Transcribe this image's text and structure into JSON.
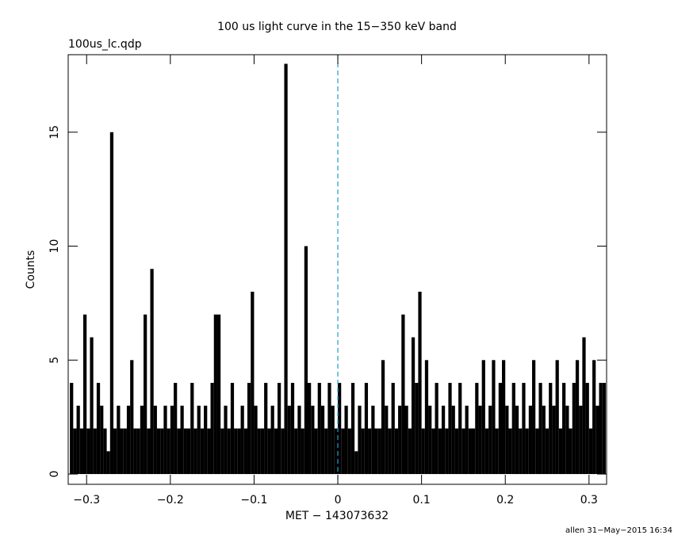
{
  "chart_data": {
    "type": "histogram-line",
    "title": "100 us light curve in the 15−350 keV band",
    "subtitle": "100us_lc.qdp",
    "xlabel": "MET − 143073632",
    "ylabel": "Counts",
    "footer": "allen 31−May−2015 16:34",
    "color": "#000000",
    "marker_x": 0,
    "marker_color": "#1f9ec9",
    "xlim": [
      -0.322,
      0.321
    ],
    "ylim": [
      -0.45,
      18.4
    ],
    "xticks": [
      {
        "value": -0.3,
        "label": "−0.3"
      },
      {
        "value": -0.2,
        "label": "−0.2"
      },
      {
        "value": -0.1,
        "label": "−0.1"
      },
      0,
      0.1,
      0.2,
      0.3
    ],
    "yticks": [
      0,
      5,
      10,
      15
    ],
    "x": [
      -0.32,
      -0.316,
      -0.312,
      -0.308,
      -0.304,
      -0.3,
      -0.296,
      -0.292,
      -0.288,
      -0.284,
      -0.28,
      -0.276,
      -0.272,
      -0.268,
      -0.264,
      -0.26,
      -0.256,
      -0.252,
      -0.248,
      -0.244,
      -0.24,
      -0.236,
      -0.232,
      -0.228,
      -0.224,
      -0.22,
      -0.216,
      -0.212,
      -0.208,
      -0.204,
      -0.2,
      -0.196,
      -0.192,
      -0.188,
      -0.184,
      -0.18,
      -0.176,
      -0.172,
      -0.168,
      -0.164,
      -0.16,
      -0.156,
      -0.152,
      -0.148,
      -0.144,
      -0.14,
      -0.136,
      -0.132,
      -0.128,
      -0.124,
      -0.12,
      -0.116,
      -0.112,
      -0.108,
      -0.104,
      -0.1,
      -0.096,
      -0.092,
      -0.088,
      -0.084,
      -0.08,
      -0.076,
      -0.072,
      -0.068,
      -0.064,
      -0.06,
      -0.056,
      -0.052,
      -0.048,
      -0.044,
      -0.04,
      -0.036,
      -0.032,
      -0.028,
      -0.024,
      -0.02,
      -0.016,
      -0.012,
      -0.008,
      -0.004,
      0,
      0.004,
      0.008,
      0.012,
      0.016,
      0.02,
      0.024,
      0.028,
      0.032,
      0.036,
      0.04,
      0.044,
      0.048,
      0.052,
      0.056,
      0.06,
      0.064,
      0.068,
      0.072,
      0.076,
      0.08,
      0.084,
      0.088,
      0.092,
      0.096,
      0.1,
      0.104,
      0.108,
      0.112,
      0.116,
      0.12,
      0.124,
      0.128,
      0.132,
      0.136,
      0.14,
      0.144,
      0.148,
      0.152,
      0.156,
      0.16,
      0.164,
      0.168,
      0.172,
      0.176,
      0.18,
      0.184,
      0.188,
      0.192,
      0.196,
      0.2,
      0.204,
      0.208,
      0.212,
      0.216,
      0.22,
      0.224,
      0.228,
      0.232,
      0.236,
      0.24,
      0.244,
      0.248,
      0.252,
      0.256,
      0.26,
      0.264,
      0.268,
      0.272,
      0.276,
      0.28,
      0.284,
      0.288,
      0.292,
      0.296,
      0.3,
      0.304,
      0.308,
      0.312,
      0.316
    ],
    "values": [
      4,
      2,
      3,
      2,
      7,
      2,
      6,
      2,
      4,
      3,
      2,
      1,
      15,
      2,
      3,
      2,
      2,
      3,
      5,
      2,
      2,
      3,
      7,
      2,
      9,
      3,
      2,
      2,
      3,
      2,
      3,
      4,
      2,
      3,
      2,
      2,
      4,
      2,
      3,
      2,
      3,
      2,
      4,
      7,
      7,
      2,
      3,
      2,
      4,
      2,
      2,
      3,
      2,
      4,
      8,
      3,
      2,
      2,
      4,
      2,
      3,
      2,
      4,
      2,
      18,
      3,
      4,
      2,
      3,
      2,
      10,
      4,
      3,
      2,
      4,
      3,
      2,
      4,
      3,
      2,
      4,
      2,
      3,
      2,
      4,
      1,
      3,
      2,
      4,
      2,
      3,
      2,
      2,
      5,
      3,
      2,
      4,
      2,
      3,
      7,
      3,
      2,
      6,
      4,
      8,
      2,
      5,
      3,
      2,
      4,
      2,
      3,
      2,
      4,
      3,
      2,
      4,
      2,
      3,
      2,
      2,
      4,
      3,
      5,
      2,
      3,
      5,
      2,
      4,
      5,
      3,
      2,
      4,
      3,
      2,
      4,
      2,
      3,
      5,
      2,
      4,
      3,
      2,
      4,
      3,
      5,
      2,
      4,
      3,
      2,
      4,
      5,
      3,
      6,
      4,
      2,
      5,
      3,
      4,
      4
    ]
  }
}
